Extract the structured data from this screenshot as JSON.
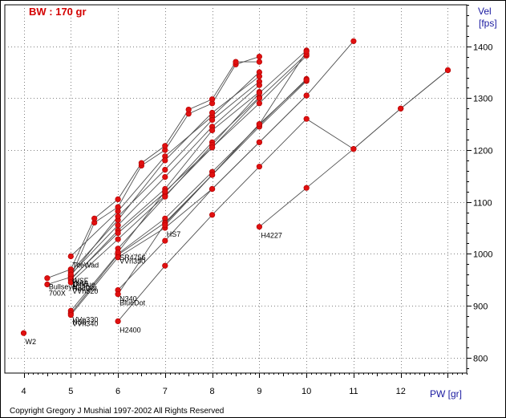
{
  "chart_data": {
    "type": "line",
    "title": "BW : 170 gr",
    "xlabel": "PW [gr]",
    "ylabel": [
      "Vel",
      "[fps]"
    ],
    "xlim": [
      3.6,
      13.4
    ],
    "ylim": [
      770,
      1480
    ],
    "x_ticks": [
      4,
      5,
      6,
      7,
      8,
      9,
      10,
      11,
      12,
      13
    ],
    "x_tick_labels": [
      "4",
      "5",
      "6",
      "7",
      "8",
      "9",
      "10",
      "11",
      "12",
      ""
    ],
    "y_ticks": [
      800,
      900,
      1000,
      1100,
      1200,
      1300,
      1400
    ],
    "y_tick_labels": [
      "800",
      "900",
      "1000",
      "1100",
      "1200",
      "1300",
      "1400"
    ],
    "grid": true,
    "legend": "none",
    "copyright": "Copyright Gregory J Mushial 1997-2002    All Rights Reserved",
    "series": [
      {
        "name": "W2",
        "points": [
          [
            4.0,
            847
          ]
        ],
        "label_at": 0
      },
      {
        "name": "700X",
        "points": [
          [
            4.5,
            941
          ],
          [
            5.0,
            955
          ],
          [
            5.5,
            1060
          ],
          [
            6.0,
            1090
          ],
          [
            6.5,
            1170
          ],
          [
            7.0,
            1200
          ],
          [
            7.5,
            1270
          ],
          [
            8.0,
            1290
          ],
          [
            8.5,
            1365
          ],
          [
            9.0,
            1380
          ]
        ],
        "label_at": 0
      },
      {
        "name": "Bullseye",
        "points": [
          [
            4.5,
            953
          ],
          [
            5.0,
            970
          ],
          [
            5.5,
            1068
          ],
          [
            6.0,
            1105
          ],
          [
            6.5,
            1175
          ],
          [
            7.0,
            1208
          ],
          [
            7.5,
            1278
          ],
          [
            8.0,
            1298
          ],
          [
            8.5,
            1370
          ],
          [
            9.0,
            1370
          ]
        ],
        "label_at": 0
      },
      {
        "name": "TiteWad",
        "points": [
          [
            5.0,
            995
          ],
          [
            6.0,
            1082
          ],
          [
            7.0,
            1188
          ],
          [
            8.0,
            1265
          ],
          [
            9.0,
            1350
          ]
        ],
        "label_at": 0
      },
      {
        "name": "WSF",
        "points": [
          [
            5.0,
            965
          ],
          [
            6.0,
            1065
          ],
          [
            7.0,
            1180
          ],
          [
            8.0,
            1272
          ],
          [
            9.0,
            1342
          ]
        ],
        "label_at": 0
      },
      {
        "name": "Unique",
        "points": [
          [
            5.0,
            958
          ],
          [
            6.0,
            1072
          ],
          [
            7.0,
            1162
          ],
          [
            8.0,
            1258
          ],
          [
            9.0,
            1332
          ]
        ],
        "label_at": 0
      },
      {
        "name": "WAA",
        "points": [
          [
            5.0,
            960
          ],
          [
            6.0,
            1055
          ],
          [
            7.0,
            1148
          ],
          [
            8.0,
            1245
          ],
          [
            9.0,
            1325
          ]
        ],
        "label_at": 0
      },
      {
        "name": "RedDot",
        "points": [
          [
            5.0,
            950
          ],
          [
            6.0,
            1045
          ],
          [
            7.0,
            1125
          ],
          [
            8.0,
            1238
          ],
          [
            9.0,
            1312
          ]
        ],
        "label_at": 0
      },
      {
        "name": "N320",
        "points": [
          [
            5.0,
            952
          ],
          [
            6.0,
            1040
          ],
          [
            7.0,
            1118
          ],
          [
            8.0,
            1215
          ],
          [
            9.0,
            1302
          ]
        ],
        "label_at": 0
      },
      {
        "name": "VVn320",
        "points": [
          [
            5.0,
            945
          ],
          [
            6.0,
            1028
          ],
          [
            7.0,
            1112
          ],
          [
            8.0,
            1205
          ],
          [
            9.0,
            1290
          ],
          [
            10.0,
            1382
          ]
        ],
        "label_at": 0
      },
      {
        "name": "VVn330",
        "points": [
          [
            5.0,
            890
          ],
          [
            6.0,
            1000
          ],
          [
            7.0,
            1068
          ],
          [
            8.0,
            1158
          ],
          [
            9.0,
            1248
          ],
          [
            10.0,
            1337
          ]
        ],
        "label_at": 0
      },
      {
        "name": "HS6",
        "points": [
          [
            5.0,
            885
          ],
          [
            6.0,
            998
          ],
          [
            7.0,
            1060
          ],
          [
            8.0,
            1152
          ],
          [
            9.0,
            1245
          ],
          [
            10.0,
            1333
          ]
        ],
        "label_at": 0
      },
      {
        "name": "VVn340",
        "points": [
          [
            5.0,
            882
          ],
          [
            6.0,
            993
          ],
          [
            7.0,
            1050
          ],
          [
            8.0,
            1125
          ],
          [
            9.0,
            1215
          ],
          [
            10.0,
            1305
          ],
          [
            11.0,
            1410
          ]
        ],
        "label_at": 0
      },
      {
        "name": "SR4756",
        "points": [
          [
            6.0,
            1010
          ],
          [
            7.0,
            1110
          ],
          [
            8.0,
            1210
          ],
          [
            9.0,
            1310
          ],
          [
            10.0,
            1392
          ]
        ],
        "label_at": 0
      },
      {
        "name": "VVn350",
        "points": [
          [
            6.0,
            1003
          ],
          [
            7.0,
            1120
          ],
          [
            8.0,
            1205
          ],
          [
            9.0,
            1300
          ],
          [
            10.0,
            1385
          ]
        ],
        "label_at": 0
      },
      {
        "name": "N340",
        "points": [
          [
            6.0,
            930
          ],
          [
            7.0,
            1025
          ],
          [
            8.0,
            1125
          ],
          [
            9.0,
            1215
          ],
          [
            10.0,
            1305
          ]
        ],
        "label_at": 0
      },
      {
        "name": "BlueDot",
        "points": [
          [
            6.0,
            922
          ],
          [
            7.0,
            1058
          ],
          [
            8.0,
            1152
          ],
          [
            9.0,
            1250
          ],
          [
            10.0,
            1335
          ]
        ],
        "label_at": 0
      },
      {
        "name": "HS7",
        "points": [
          [
            7.0,
            1055
          ],
          [
            8.0,
            1152
          ],
          [
            9.0,
            1250
          ],
          [
            10.0,
            1390
          ]
        ],
        "label_at": 0
      },
      {
        "name": "H2400",
        "points": [
          [
            6.0,
            870
          ],
          [
            7.0,
            977
          ],
          [
            8.0,
            1075
          ],
          [
            9.0,
            1168
          ],
          [
            10.0,
            1260
          ],
          [
            11.0,
            1202
          ],
          [
            12.0,
            1280
          ],
          [
            13.0,
            1354
          ]
        ],
        "label_at": 0
      },
      {
        "name": "H4227",
        "points": [
          [
            9.0,
            1052
          ],
          [
            10.0,
            1127
          ],
          [
            11.0,
            1202
          ],
          [
            12.0,
            1280
          ],
          [
            13.0,
            1354
          ]
        ],
        "label_at": 0
      }
    ]
  }
}
